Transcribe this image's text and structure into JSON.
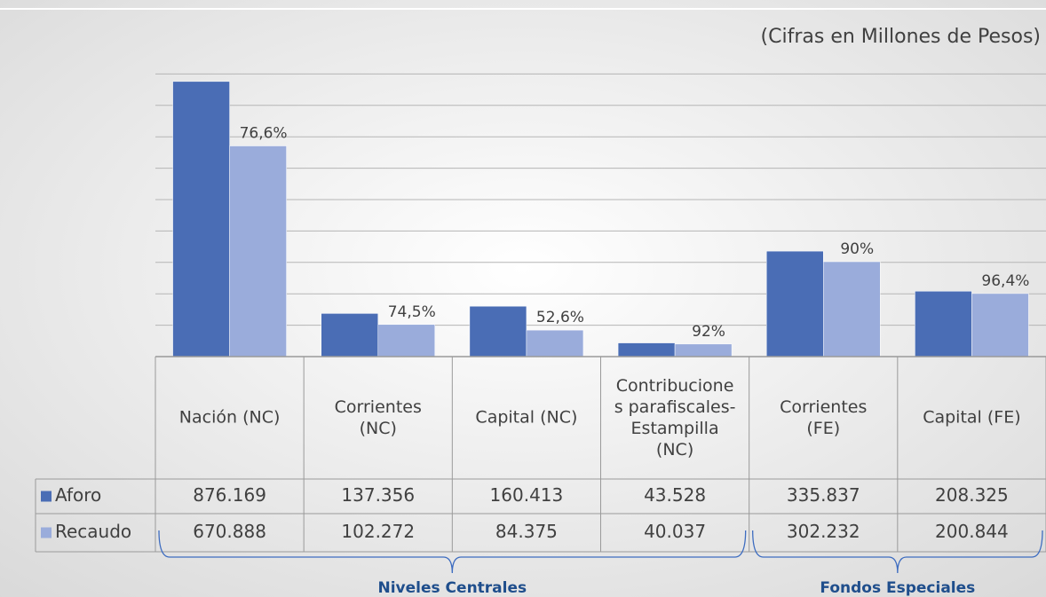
{
  "chart_data": {
    "type": "bar",
    "subtitle": "(Cifras en Millones de Pesos)",
    "categories": [
      "Nación (NC)",
      "Corrientes\n(NC)",
      "Capital (NC)",
      "Contribucione\ns parafiscales-\nEstampilla\n(NC)",
      "Corrientes\n(FE)",
      "Capital (FE)"
    ],
    "series": [
      {
        "name": "Aforo",
        "color": "#4a6db5",
        "values": [
          876169,
          137356,
          160413,
          43528,
          335837,
          208325
        ],
        "value_labels": [
          "876.169",
          "137.356",
          "160.413",
          "43.528",
          "335.837",
          "208.325"
        ]
      },
      {
        "name": "Recaudo",
        "color": "#9aacdb",
        "values": [
          670888,
          102272,
          84375,
          40037,
          302232,
          200844
        ],
        "value_labels": [
          "670.888",
          "102.272",
          "84.375",
          "40.037",
          "302.232",
          "200.844"
        ],
        "percent_labels": [
          {
            "value": 76.6,
            "label": "76,6%"
          },
          {
            "value": 74.5,
            "label": "74,5%"
          },
          {
            "value": 52.6,
            "label": "52,6%"
          },
          {
            "value": 92,
            "label": "92%"
          },
          {
            "value": 90,
            "label": "90%"
          },
          {
            "value": 96.4,
            "label": "96,4%"
          }
        ]
      }
    ],
    "ylim": [
      0,
      1000000
    ],
    "yticks": [
      0,
      100000,
      200000,
      300000,
      400000,
      500000,
      600000,
      700000,
      800000,
      900000
    ],
    "grid": true,
    "groups": [
      {
        "label": "Niveles Centrales",
        "from": 0,
        "to": 3
      },
      {
        "label": "Fondos Especiales",
        "from": 4,
        "to": 5
      }
    ]
  }
}
